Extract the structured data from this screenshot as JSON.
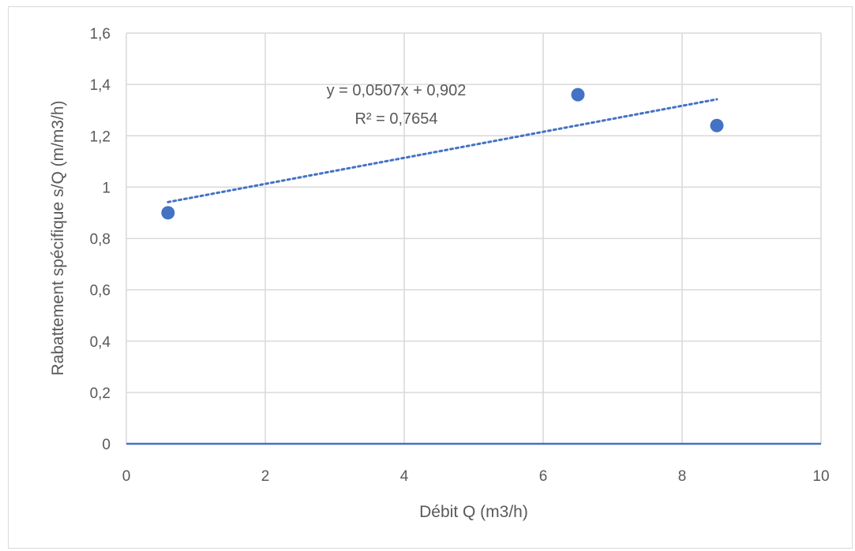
{
  "chart_data": {
    "type": "scatter",
    "title": "",
    "xlabel": "Débit Q (m3/h)",
    "ylabel": "Rabattement spécifique s/Q (m/m3/h)",
    "xlim": [
      0,
      10
    ],
    "ylim": [
      0,
      1.6
    ],
    "x_ticks": [
      0,
      2,
      4,
      6,
      8,
      10
    ],
    "y_ticks": [
      0,
      0.2,
      0.4,
      0.6,
      0.8,
      1.0,
      1.2,
      1.4,
      1.6
    ],
    "x_tick_labels": [
      "0",
      "2",
      "4",
      "6",
      "8",
      "10"
    ],
    "y_tick_labels": [
      "0",
      "0,2",
      "0,4",
      "0,6",
      "0,8",
      "1",
      "1,2",
      "1,4",
      "1,6"
    ],
    "grid": true,
    "legend": "none",
    "series": [
      {
        "x": [
          0.6,
          6.5,
          8.5
        ],
        "y": [
          0.9,
          1.36,
          1.24
        ],
        "color": "#4472c4"
      }
    ],
    "trendline": {
      "type": "linear",
      "slope": 0.0507,
      "intercept": 0.902,
      "x_range": [
        0.6,
        8.5
      ],
      "style": "dotted",
      "color": "#4472c4"
    },
    "annotations": [
      "y = 0,0507x + 0,902",
      "R² = 0,7654"
    ]
  }
}
